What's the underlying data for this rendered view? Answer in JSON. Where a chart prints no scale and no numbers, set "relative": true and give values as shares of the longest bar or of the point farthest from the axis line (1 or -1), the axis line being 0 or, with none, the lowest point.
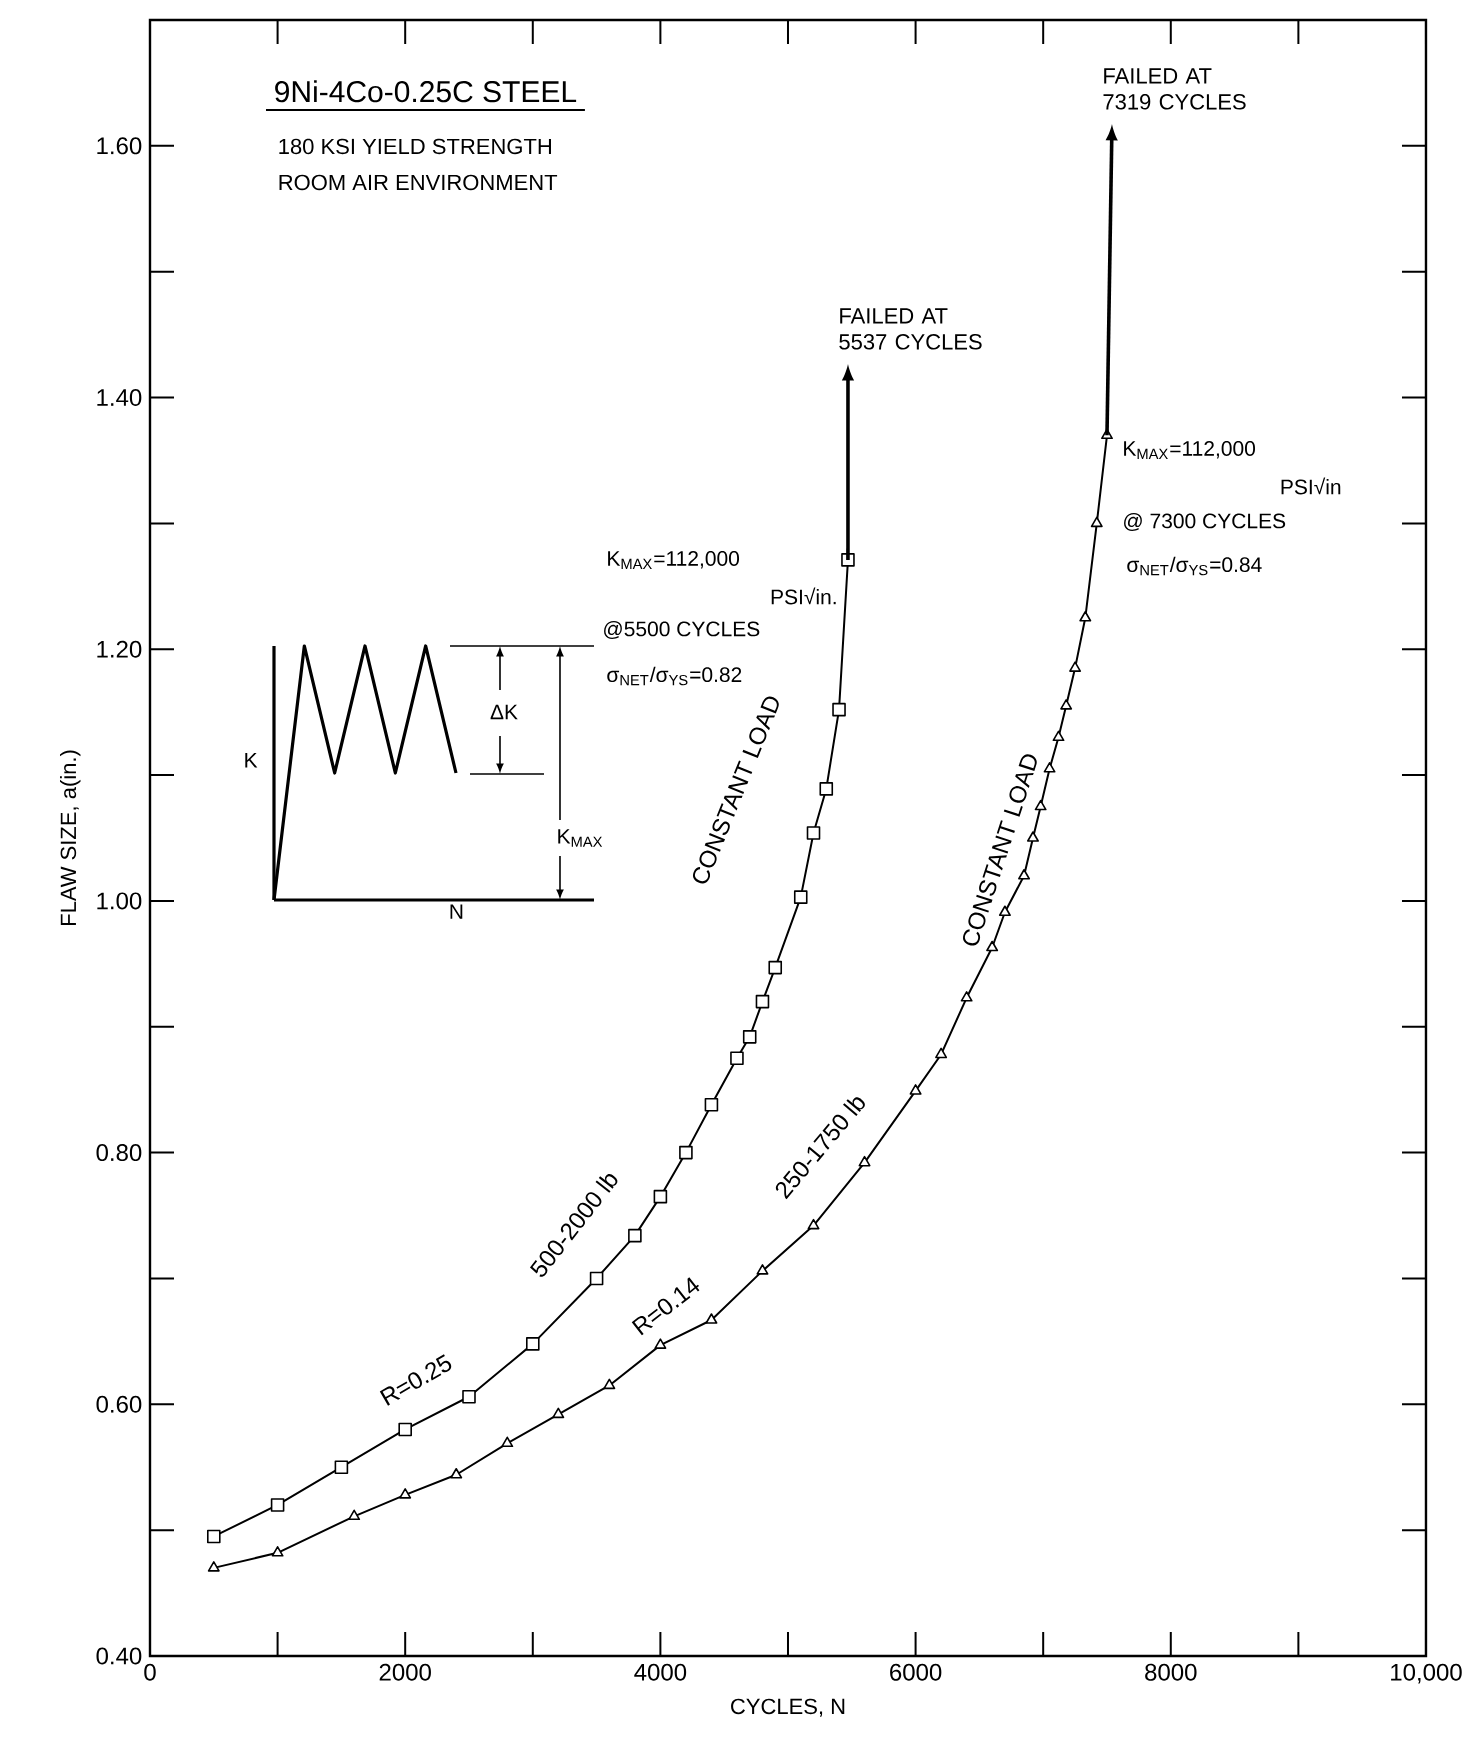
{
  "chart_data": [
    {
      "type": "line",
      "title": "9Ni-4Co-0.25C STEEL",
      "subtitle": "180 KSI YIELD STRENGTH",
      "xlabel": "CYCLES, N",
      "ylabel": "FLAW SIZE, a(in.)",
      "series": [
        {
          "color": "#000000",
          "marker": "square",
          "x": [
            500,
            1000,
            1500,
            2000,
            2500,
            3000,
            3500,
            3800,
            4000,
            4200,
            4400,
            4600,
            4700,
            4800,
            4900,
            5100,
            5200,
            5300,
            5400,
            5470
          ],
          "values": [
            0.495,
            0.52,
            0.55,
            0.58,
            0.606,
            0.648,
            0.7,
            0.734,
            0.765,
            0.8,
            0.838,
            0.875,
            0.892,
            0.92,
            0.947,
            1.003,
            1.054,
            1.089,
            1.152,
            1.271
          ]
        },
        {
          "color": "#000000",
          "marker": "triangle",
          "x": [
            500,
            1000,
            1600,
            2000,
            2400,
            2800,
            3200,
            3600,
            4000,
            4400,
            4800,
            5200,
            5600,
            6000,
            6200,
            6400,
            6600,
            6700,
            6850,
            6920,
            6980,
            7050,
            7120,
            7180,
            7250,
            7330,
            7420,
            7500
          ],
          "values": [
            0.47,
            0.482,
            0.511,
            0.528,
            0.544,
            0.569,
            0.592,
            0.615,
            0.647,
            0.667,
            0.706,
            0.742,
            0.792,
            0.849,
            0.878,
            0.923,
            0.963,
            0.991,
            1.02,
            1.05,
            1.075,
            1.105,
            1.13,
            1.155,
            1.185,
            1.225,
            1.3,
            1.37
          ]
        }
      ],
      "xlim": [
        0,
        10000
      ],
      "ylim": [
        0.4,
        1.7
      ],
      "xticks": [
        0,
        {
          "value": 1000,
          "label": null
        },
        2000,
        {
          "value": 3000,
          "label": null
        },
        4000,
        {
          "value": 5000,
          "label": null
        },
        6000,
        {
          "value": 7000,
          "label": null
        },
        8000,
        {
          "value": 9000,
          "label": null
        },
        {
          "value": 10000,
          "label": "10,000"
        }
      ],
      "yticks": [
        {
          "value": 0.4,
          "label": "0.40"
        },
        {
          "value": 0.5,
          "label": null
        },
        {
          "value": 0.6,
          "label": "0.60"
        },
        {
          "value": 0.7,
          "label": null
        },
        {
          "value": 0.8,
          "label": "0.80"
        },
        {
          "value": 0.9,
          "label": null
        },
        {
          "value": 1.0,
          "label": "1.00"
        },
        {
          "value": 1.1,
          "label": null
        },
        {
          "value": 1.2,
          "label": "1.20"
        },
        {
          "value": 1.3,
          "label": null
        },
        {
          "value": 1.4,
          "label": "1.40"
        },
        {
          "value": 1.5,
          "label": null
        },
        {
          "value": 1.6,
          "label": "1.60"
        }
      ],
      "line_style": "solid",
      "annotations": [
        "FAILED AT 5537 CYCLES",
        "FAILED AT 7319 CYCLES",
        "ROOM AIR ENVIRONMENT",
        "K$_{MAX}$=112,000",
        "PSI√in.",
        "@5500 CYCLES",
        "σ$_{NET}$/σ$_{YS}$=0.82",
        "K$_{MAX}$=112,000",
        "PSI√in",
        "@ 7300 CYCLES",
        "σ$_{NET}$/σ$_{YS}$=0.84",
        "R=0.25",
        "500-2000 lb",
        "CONSTANT LOAD",
        "R=0.14",
        "250-1750 lb",
        "CONSTANT LOAD"
      ]
    },
    {
      "type": "line",
      "relative": true,
      "xlabel": "N",
      "ylabel": "K",
      "categories": [
        null,
        null,
        null,
        null,
        null,
        null,
        null
      ],
      "series": [
        {
          "color": "#000000",
          "values": [
            0,
            1,
            0.5,
            1,
            0.5,
            1,
            0.5
          ]
        }
      ],
      "annotations": [
        "ΔK",
        "K$_{MAX}$"
      ]
    }
  ]
}
